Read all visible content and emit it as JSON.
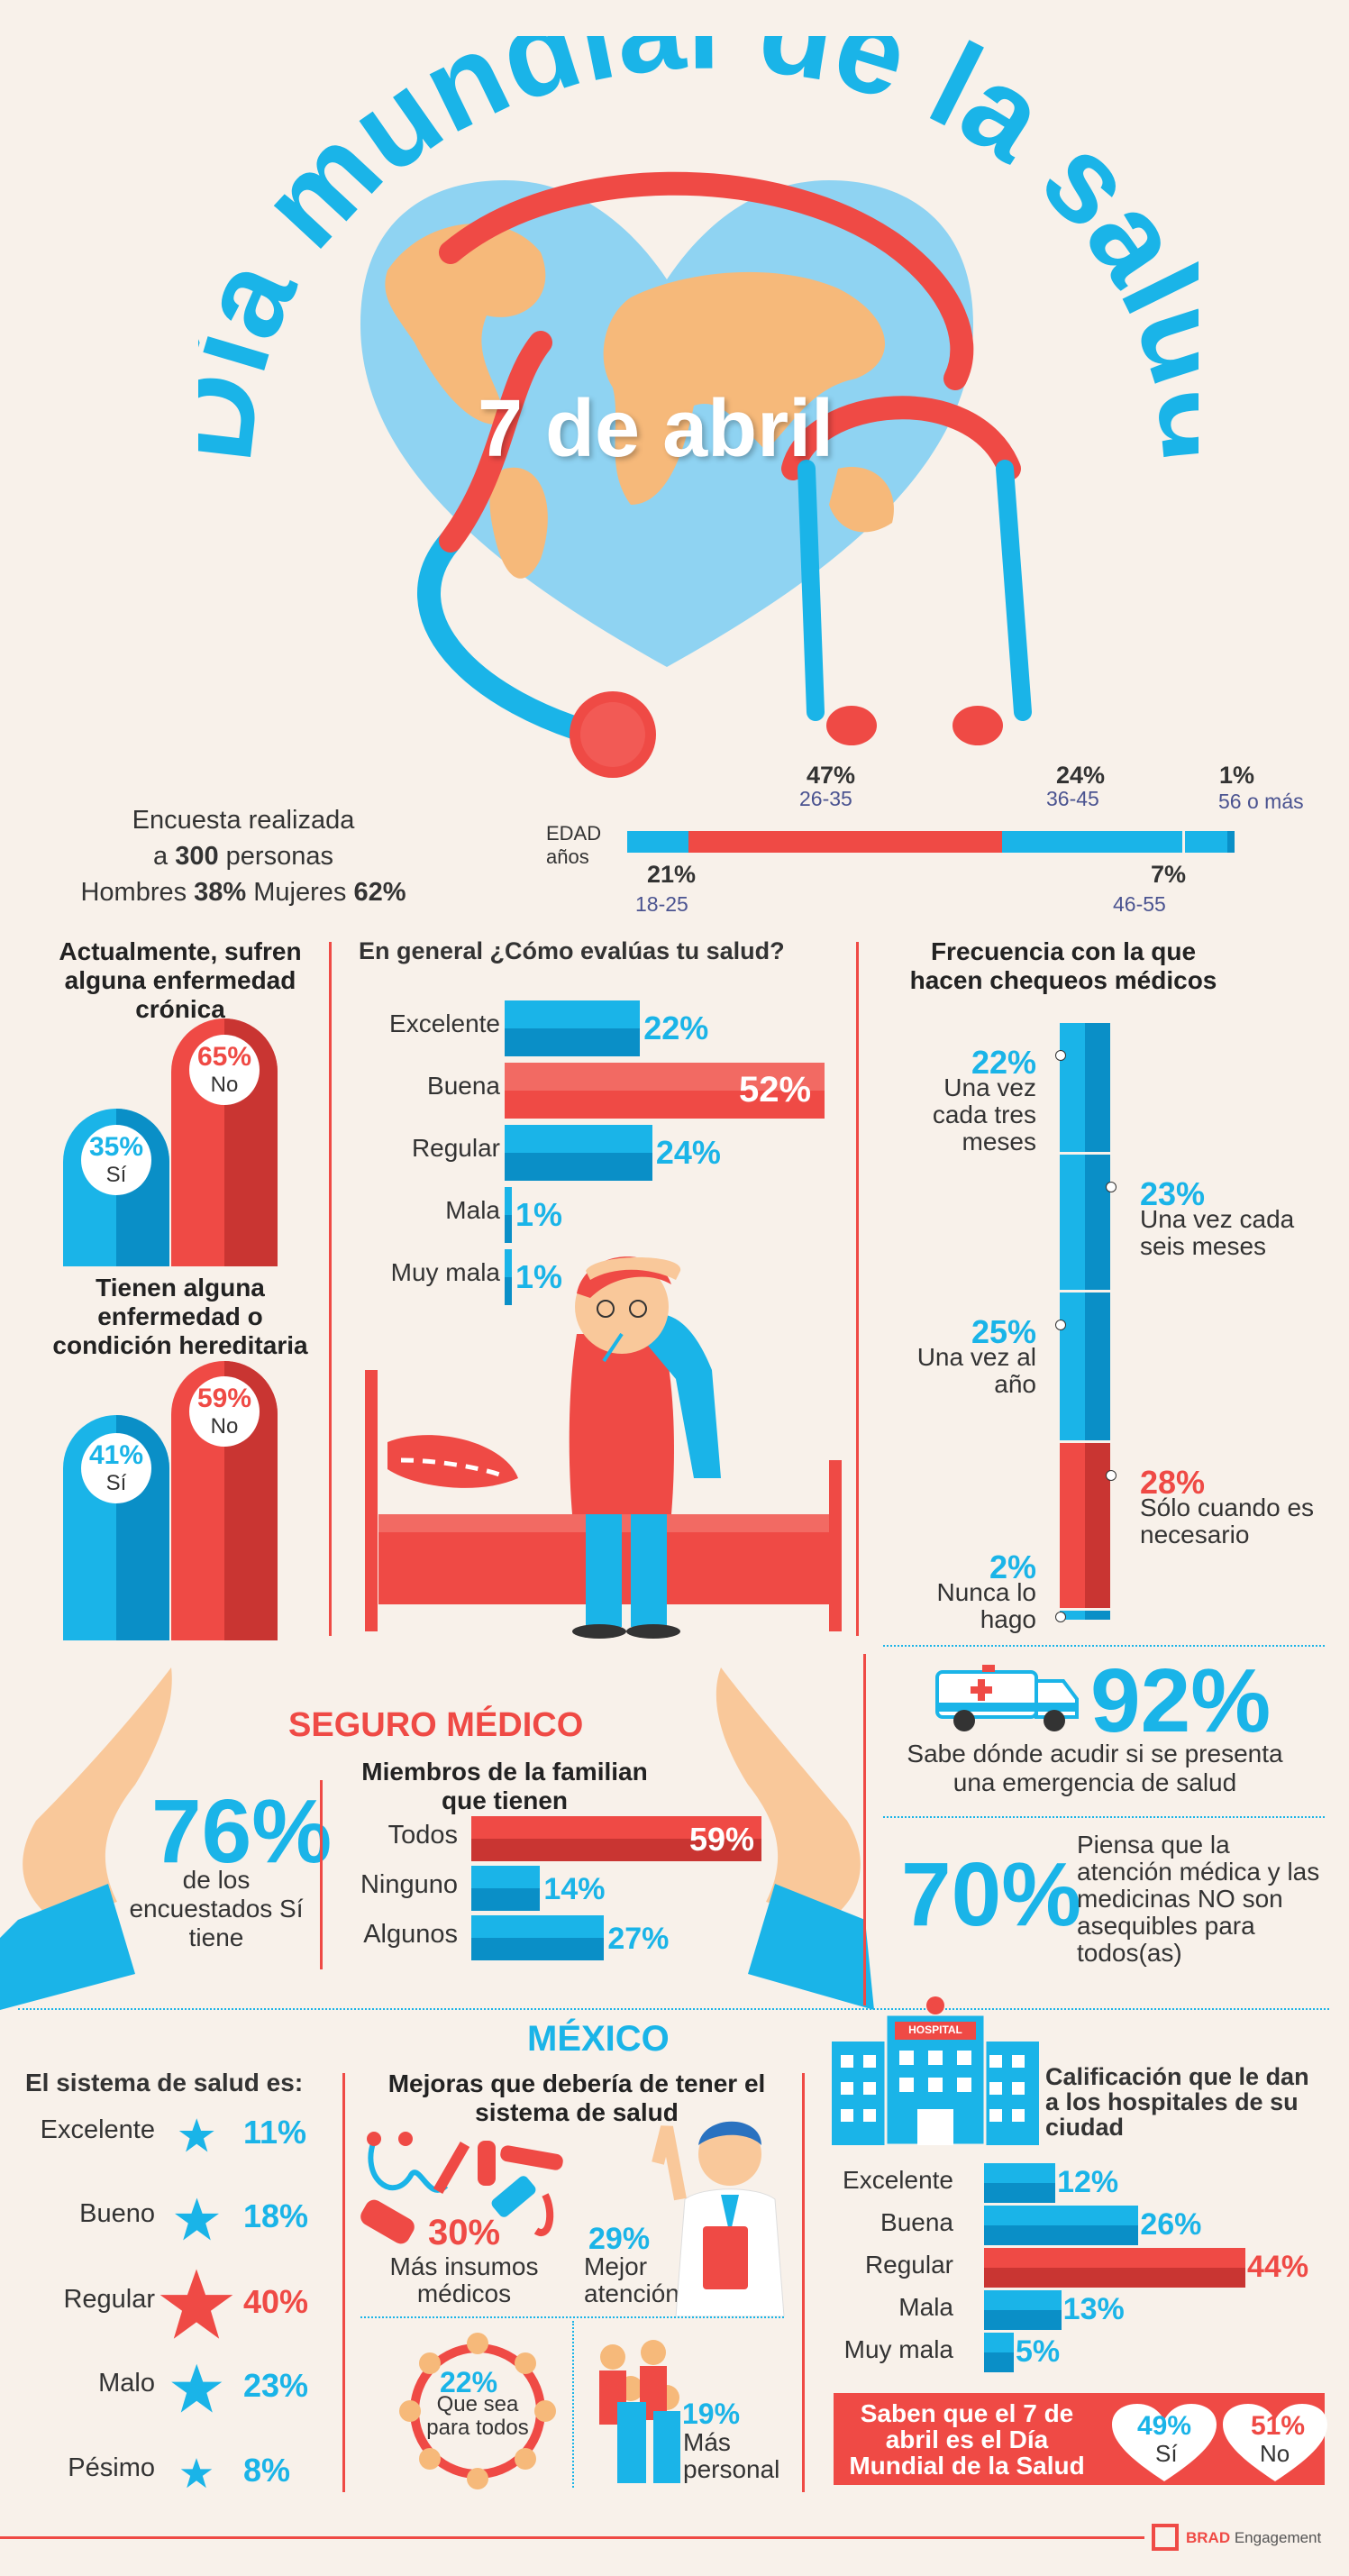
{
  "header": {
    "title": "Día mundial de la salud",
    "date": "7 de abril"
  },
  "survey": {
    "line1": "Encuesta realizada",
    "line2_a": "a ",
    "count": "300",
    "line2_b": " personas",
    "men_label": "Hombres ",
    "men_pct": "38%",
    "women_label": " Mujeres ",
    "women_pct": "62%"
  },
  "age": {
    "axis_label": "EDAD",
    "axis_unit": "años",
    "groups": [
      {
        "pct": "21%",
        "range": "18-25"
      },
      {
        "pct": "47%",
        "range": "26-35"
      },
      {
        "pct": "24%",
        "range": "36-45"
      },
      {
        "pct": "7%",
        "range": "46-55"
      },
      {
        "pct": "1%",
        "range": "56 o más"
      }
    ]
  },
  "chronic": {
    "title": "Actualmente, sufren alguna enfermedad crónica",
    "yes_pct": "35%",
    "yes": "Sí",
    "no_pct": "65%",
    "no": "No"
  },
  "hereditary": {
    "title": "Tienen alguna enfermedad o condición hereditaria",
    "yes_pct": "41%",
    "yes": "Sí",
    "no_pct": "59%",
    "no": "No"
  },
  "health_rating": {
    "title": "En general ¿Cómo evalúas tu salud?",
    "items": [
      {
        "label": "Excelente",
        "pct": "22%",
        "value": 22
      },
      {
        "label": "Buena",
        "pct": "52%",
        "value": 52
      },
      {
        "label": "Regular",
        "pct": "24%",
        "value": 24
      },
      {
        "label": "Mala",
        "pct": "1%",
        "value": 1
      },
      {
        "label": "Muy mala",
        "pct": "1%",
        "value": 1
      }
    ]
  },
  "checkups": {
    "title": "Frecuencia con la que hacen chequeos médicos",
    "items": [
      {
        "pct": "22%",
        "label": "Una vez cada tres meses",
        "value": 22
      },
      {
        "pct": "23%",
        "label": "Una vez cada seis meses",
        "value": 23
      },
      {
        "pct": "25%",
        "label": "Una vez al año",
        "value": 25
      },
      {
        "pct": "28%",
        "label": "Sólo cuando es necesario",
        "value": 28
      },
      {
        "pct": "2%",
        "label": "Nunca lo hago",
        "value": 2
      }
    ]
  },
  "insurance": {
    "title": "SEGURO MÉDICO",
    "pct": "76%",
    "desc": "de los encuestados Sí tiene",
    "members_title": "Miembros de la familian que tienen",
    "members": [
      {
        "label": "Todos",
        "pct": "59%",
        "value": 59
      },
      {
        "label": "Ninguno",
        "pct": "14%",
        "value": 14
      },
      {
        "label": "Algunos",
        "pct": "27%",
        "value": 27
      }
    ]
  },
  "emergency": {
    "pct": "92%",
    "desc": "Sabe dónde acudir si se presenta una emergencia de salud",
    "ambulance_icon": "ambulance-icon"
  },
  "affordable": {
    "pct": "70%",
    "desc": "Piensa que la atención médica y las medicinas NO son asequibles para todos(as)"
  },
  "mexico": {
    "title": "MÉXICO",
    "system_title": "El sistema de salud es:",
    "system": [
      {
        "label": "Excelente",
        "pct": "11%",
        "value": 11
      },
      {
        "label": "Bueno",
        "pct": "18%",
        "value": 18
      },
      {
        "label": "Regular",
        "pct": "40%",
        "value": 40
      },
      {
        "label": "Malo",
        "pct": "23%",
        "value": 23
      },
      {
        "label": "Pésimo",
        "pct": "8%",
        "value": 8
      }
    ],
    "improvements_title": "Mejoras que debería de tener el sistema de salud",
    "improvements": [
      {
        "pct": "30%",
        "label": "Más insumos médicos"
      },
      {
        "pct": "29%",
        "label": "Mejor atención"
      },
      {
        "pct": "22%",
        "label": "Que sea para todos"
      },
      {
        "pct": "19%",
        "label": "Más personal"
      }
    ],
    "hospital_sign": "HOSPITAL",
    "hospitals_title": "Calificación que le dan a los hospitales de su ciudad",
    "hospitals": [
      {
        "label": "Excelente",
        "pct": "12%",
        "value": 12
      },
      {
        "label": "Buena",
        "pct": "26%",
        "value": 26
      },
      {
        "label": "Regular",
        "pct": "44%",
        "value": 44
      },
      {
        "label": "Mala",
        "pct": "13%",
        "value": 13
      },
      {
        "label": "Muy mala",
        "pct": "5%",
        "value": 5
      }
    ],
    "know_title": "Saben que el 7 de abril es el Día Mundial de la Salud",
    "know_yes_pct": "49%",
    "know_yes": "Sí",
    "know_no_pct": "51%",
    "know_no": "No"
  },
  "footer": {
    "brand": "BRAD",
    "brand_sub": " Engagement"
  },
  "colors": {
    "blue": "#1ab4e8",
    "dark_blue": "#0a8fc7",
    "red": "#ef4a45",
    "dark_red": "#c93532",
    "bg": "#f8f1ea"
  }
}
